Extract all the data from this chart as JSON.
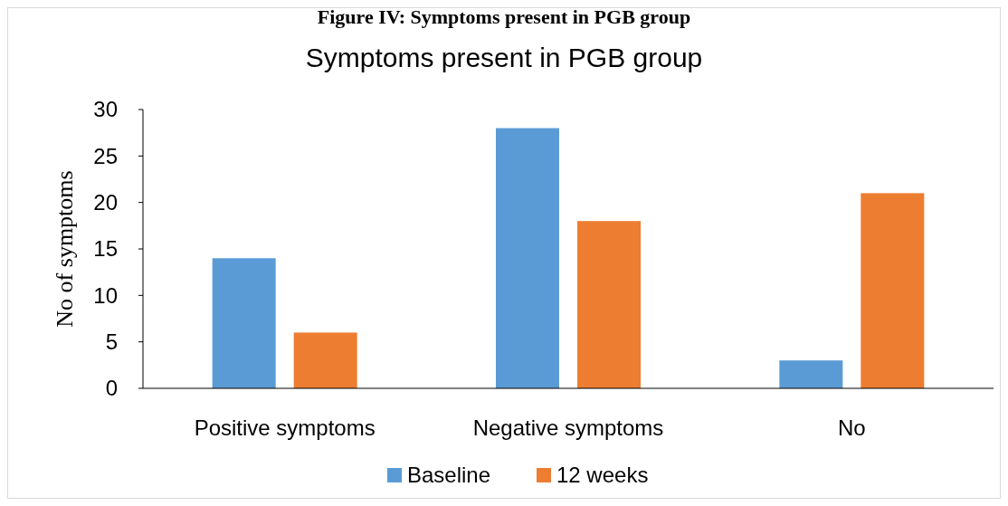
{
  "chart_data": {
    "type": "bar",
    "title": "Symptoms present in PGB group",
    "ylabel": "No of symptoms",
    "annotations": [
      "Figure IV: Symptoms present in PGB group"
    ],
    "categories": [
      "Positive symptoms",
      "Negative symptoms",
      "No"
    ],
    "series": [
      {
        "name": "Baseline",
        "color": "#5b9bd5",
        "values": [
          14,
          28,
          3
        ]
      },
      {
        "name": "12 weeks",
        "color": "#ed7d31",
        "values": [
          6,
          18,
          21
        ]
      }
    ],
    "ylim": [
      0,
      30
    ],
    "yticks": [
      0,
      5,
      10,
      15,
      20,
      25,
      30
    ],
    "grid": false,
    "legend": "bottom"
  }
}
